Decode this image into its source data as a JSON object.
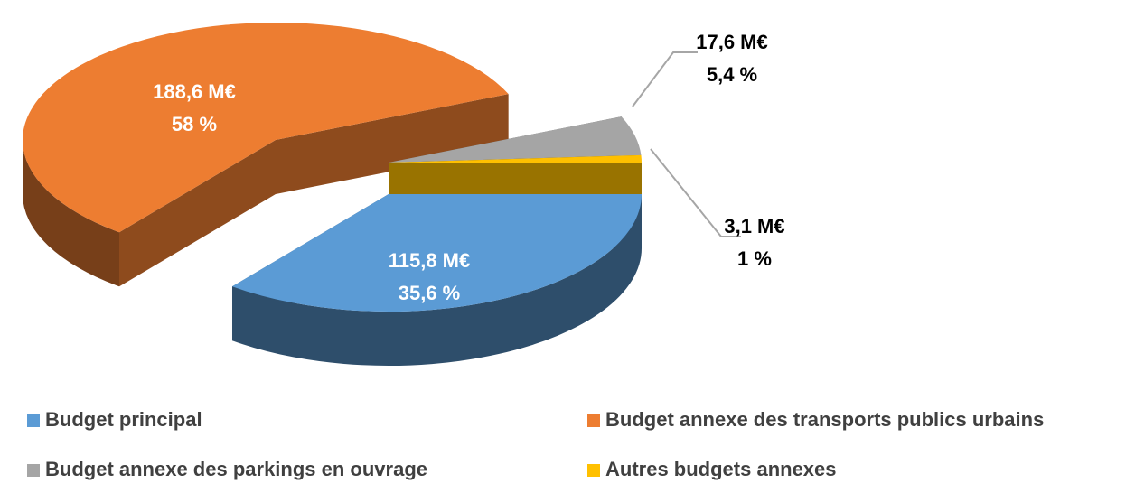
{
  "chart_data": {
    "type": "pie3d",
    "categories": [
      "Budget principal",
      "Budget annexe des transports publics urbains",
      "Budget annexe des parkings en ouvrage",
      "Autres budgets annexes"
    ],
    "values": [
      35.6,
      58,
      5.4,
      1
    ],
    "value_labels": [
      "35,6 %",
      "58 %",
      "5,4 %",
      "1 %"
    ],
    "amounts": [
      115.8,
      188.6,
      17.6,
      3.1
    ],
    "amount_labels": [
      "115,8 M€",
      "188,6 M€",
      "17,6 M€",
      "3,1 M€"
    ],
    "colors": [
      "#5b9bd5",
      "#ed7d31",
      "#a5a5a5",
      "#ffc000"
    ],
    "legend": "bottom"
  }
}
